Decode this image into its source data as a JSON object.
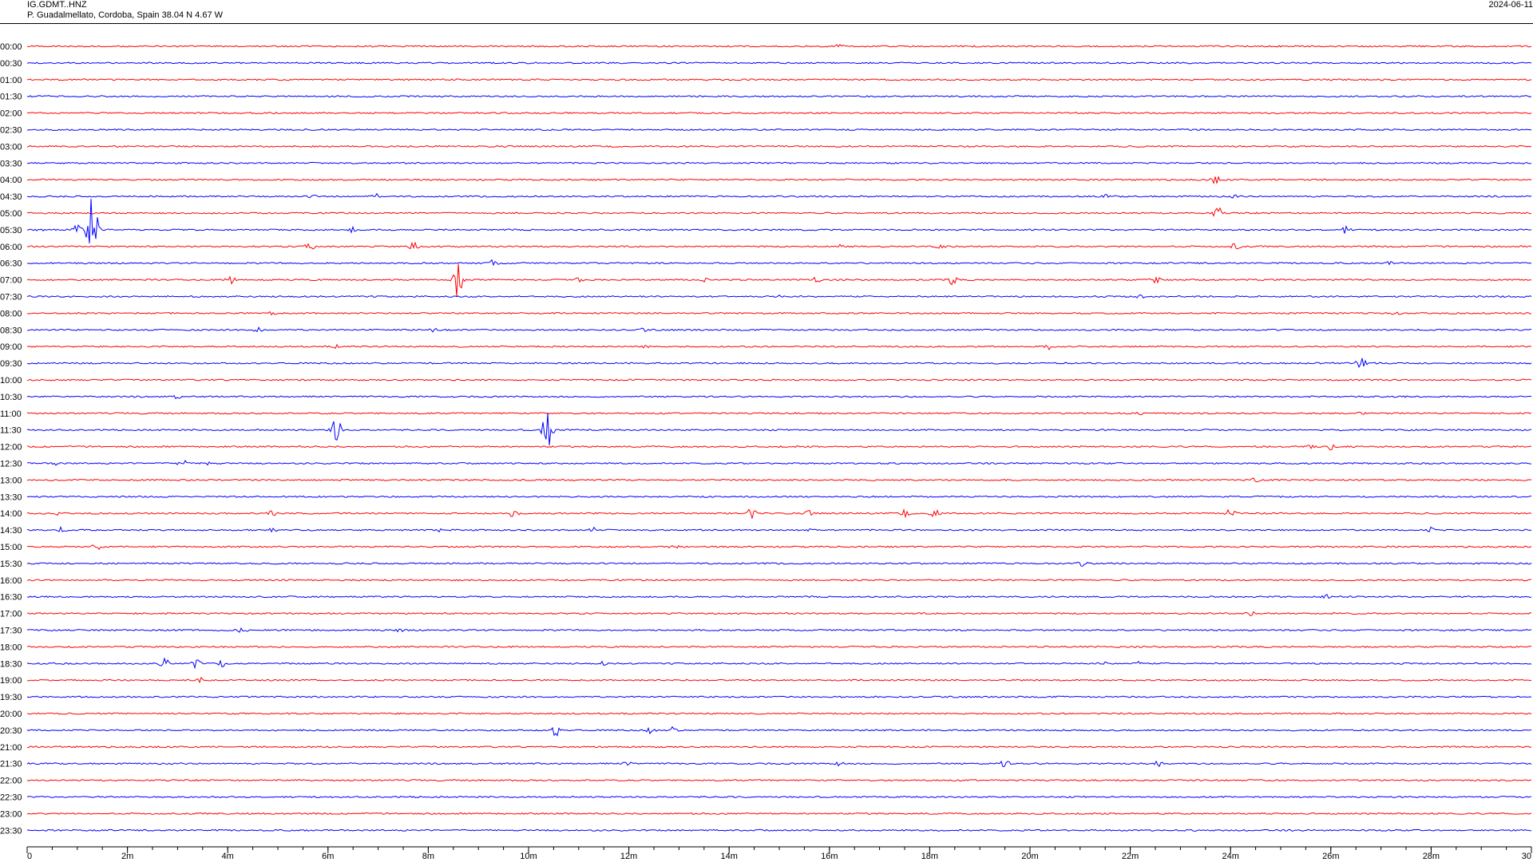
{
  "header": {
    "station_code": "IG.GDMT..HNZ",
    "station_location": "P. Guadalmellato, Cordoba, Spain  38.04 N 4.67 W",
    "date": "2024-06-11"
  },
  "colors": {
    "even_trace": "#ff0000",
    "odd_trace": "#0000ff",
    "axis": "#000000"
  },
  "chart_data": {
    "type": "line",
    "title": "",
    "xlabel": "",
    "ylabel": "",
    "xlim": [
      0,
      30
    ],
    "x_unit": "minutes",
    "row_labels": [
      "00:00",
      "00:30",
      "01:00",
      "01:30",
      "02:00",
      "02:30",
      "03:00",
      "03:30",
      "04:00",
      "04:30",
      "05:00",
      "05:30",
      "06:00",
      "06:30",
      "07:00",
      "07:30",
      "08:00",
      "08:30",
      "09:00",
      "09:30",
      "10:00",
      "10:30",
      "11:00",
      "11:30",
      "12:00",
      "12:30",
      "13:00",
      "13:30",
      "14:00",
      "14:30",
      "15:00",
      "15:30",
      "16:00",
      "16:30",
      "17:00",
      "17:30",
      "18:00",
      "18:30",
      "19:00",
      "19:30",
      "20:00",
      "20:30",
      "21:00",
      "21:30",
      "22:00",
      "22:30",
      "23:00",
      "23:30"
    ],
    "x_ticks": [
      0,
      2,
      4,
      6,
      8,
      10,
      12,
      14,
      16,
      18,
      20,
      22,
      24,
      26,
      28,
      30
    ],
    "x_tick_labels": [
      "0",
      "2m",
      "4m",
      "6m",
      "8m",
      "10m",
      "12m",
      "14m",
      "16m",
      "18m",
      "20m",
      "22m",
      "24m",
      "26m",
      "28m",
      "30"
    ],
    "events": [
      {
        "row": "00:00",
        "t": 16.2,
        "amp": 3
      },
      {
        "row": "04:00",
        "t": 23.7,
        "amp": 5
      },
      {
        "row": "04:30",
        "t": 5.7,
        "amp": 3
      },
      {
        "row": "04:30",
        "t": 6.95,
        "amp": 4
      },
      {
        "row": "04:30",
        "t": 21.5,
        "amp": 3
      },
      {
        "row": "04:30",
        "t": 24.1,
        "amp": 3
      },
      {
        "row": "05:00",
        "t": 23.75,
        "amp": 8
      },
      {
        "row": "05:30",
        "t": 0.3,
        "amp": 4
      },
      {
        "row": "05:30",
        "t": 1.0,
        "amp": 6
      },
      {
        "row": "05:30",
        "t": 1.3,
        "amp": 45
      },
      {
        "row": "05:30",
        "t": 6.5,
        "amp": 4
      },
      {
        "row": "05:30",
        "t": 26.3,
        "amp": 5
      },
      {
        "row": "06:00",
        "t": 5.65,
        "amp": 9
      },
      {
        "row": "06:00",
        "t": 7.7,
        "amp": 6
      },
      {
        "row": "06:00",
        "t": 16.2,
        "amp": 3
      },
      {
        "row": "06:00",
        "t": 18.2,
        "amp": 5
      },
      {
        "row": "06:00",
        "t": 24.1,
        "amp": 5
      },
      {
        "row": "06:30",
        "t": 9.3,
        "amp": 5
      },
      {
        "row": "06:30",
        "t": 27.2,
        "amp": 3
      },
      {
        "row": "07:00",
        "t": 4.05,
        "amp": 6
      },
      {
        "row": "07:00",
        "t": 8.58,
        "amp": 22
      },
      {
        "row": "07:00",
        "t": 11.0,
        "amp": 3
      },
      {
        "row": "07:00",
        "t": 13.5,
        "amp": 3
      },
      {
        "row": "07:00",
        "t": 15.7,
        "amp": 7
      },
      {
        "row": "07:00",
        "t": 18.45,
        "amp": 7
      },
      {
        "row": "07:00",
        "t": 22.5,
        "amp": 5
      },
      {
        "row": "07:30",
        "t": 15.0,
        "amp": 3
      },
      {
        "row": "07:30",
        "t": 22.2,
        "amp": 3
      },
      {
        "row": "08:00",
        "t": 4.9,
        "amp": 3
      },
      {
        "row": "08:00",
        "t": 27.3,
        "amp": 3
      },
      {
        "row": "08:30",
        "t": 4.6,
        "amp": 4
      },
      {
        "row": "08:30",
        "t": 8.1,
        "amp": 3
      },
      {
        "row": "08:30",
        "t": 12.3,
        "amp": 3
      },
      {
        "row": "09:00",
        "t": 6.2,
        "amp": 3
      },
      {
        "row": "09:00",
        "t": 12.3,
        "amp": 3
      },
      {
        "row": "09:00",
        "t": 20.4,
        "amp": 4
      },
      {
        "row": "09:30",
        "t": 26.6,
        "amp": 7
      },
      {
        "row": "10:30",
        "t": 3.0,
        "amp": 3
      },
      {
        "row": "11:00",
        "t": 22.2,
        "amp": 3
      },
      {
        "row": "11:00",
        "t": 26.6,
        "amp": 3
      },
      {
        "row": "11:30",
        "t": 6.15,
        "amp": 20
      },
      {
        "row": "11:30",
        "t": 10.38,
        "amp": 30
      },
      {
        "row": "12:00",
        "t": 25.6,
        "amp": 3
      },
      {
        "row": "12:00",
        "t": 26.0,
        "amp": 5
      },
      {
        "row": "12:30",
        "t": 0.6,
        "amp": 3
      },
      {
        "row": "12:30",
        "t": 3.1,
        "amp": 7
      },
      {
        "row": "12:30",
        "t": 3.6,
        "amp": 4
      },
      {
        "row": "13:00",
        "t": 24.5,
        "amp": 3
      },
      {
        "row": "14:00",
        "t": 0.6,
        "amp": 3
      },
      {
        "row": "14:00",
        "t": 4.9,
        "amp": 5
      },
      {
        "row": "14:00",
        "t": 9.7,
        "amp": 6
      },
      {
        "row": "14:00",
        "t": 14.45,
        "amp": 7
      },
      {
        "row": "14:00",
        "t": 15.6,
        "amp": 4
      },
      {
        "row": "14:00",
        "t": 17.5,
        "amp": 5
      },
      {
        "row": "14:00",
        "t": 18.1,
        "amp": 8
      },
      {
        "row": "14:00",
        "t": 24.0,
        "amp": 6
      },
      {
        "row": "14:30",
        "t": 0.7,
        "amp": 4
      },
      {
        "row": "14:30",
        "t": 4.9,
        "amp": 3
      },
      {
        "row": "14:30",
        "t": 8.2,
        "amp": 3
      },
      {
        "row": "14:30",
        "t": 11.3,
        "amp": 4
      },
      {
        "row": "14:30",
        "t": 15.6,
        "amp": 3
      },
      {
        "row": "14:30",
        "t": 28.0,
        "amp": 4
      },
      {
        "row": "15:00",
        "t": 1.4,
        "amp": 9
      },
      {
        "row": "15:00",
        "t": 12.9,
        "amp": 4
      },
      {
        "row": "15:30",
        "t": 21.05,
        "amp": 4
      },
      {
        "row": "16:30",
        "t": 25.9,
        "amp": 3
      },
      {
        "row": "17:00",
        "t": 24.4,
        "amp": 3
      },
      {
        "row": "17:30",
        "t": 4.3,
        "amp": 4
      },
      {
        "row": "17:30",
        "t": 7.45,
        "amp": 3
      },
      {
        "row": "18:30",
        "t": 2.75,
        "amp": 8
      },
      {
        "row": "18:30",
        "t": 3.35,
        "amp": 8
      },
      {
        "row": "18:30",
        "t": 3.85,
        "amp": 6
      },
      {
        "row": "18:30",
        "t": 11.5,
        "amp": 3
      },
      {
        "row": "18:30",
        "t": 21.5,
        "amp": 3
      },
      {
        "row": "18:30",
        "t": 22.15,
        "amp": 3
      },
      {
        "row": "19:00",
        "t": 3.45,
        "amp": 4
      },
      {
        "row": "20:30",
        "t": 10.55,
        "amp": 8
      },
      {
        "row": "20:30",
        "t": 12.45,
        "amp": 5
      },
      {
        "row": "20:30",
        "t": 12.9,
        "amp": 5
      },
      {
        "row": "21:30",
        "t": 11.95,
        "amp": 4
      },
      {
        "row": "21:30",
        "t": 16.2,
        "amp": 4
      },
      {
        "row": "21:30",
        "t": 19.5,
        "amp": 5
      },
      {
        "row": "21:30",
        "t": 22.55,
        "amp": 4
      }
    ]
  }
}
